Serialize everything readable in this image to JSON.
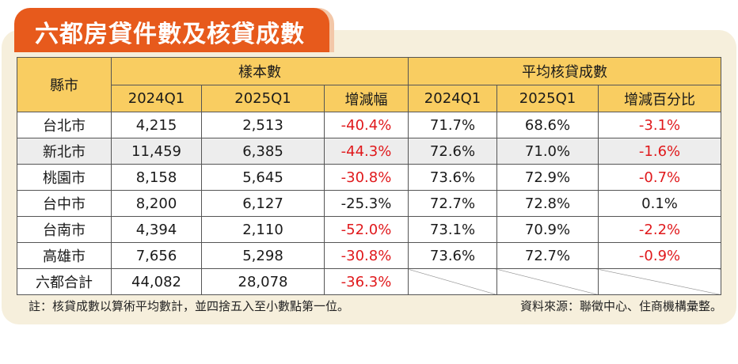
{
  "title": "六都房貸件數及核貸成數",
  "table": {
    "county_header": "縣市",
    "group_sample": "樣本數",
    "group_ratio": "平均核貸成數",
    "sub_headers": [
      "2024Q1",
      "2025Q1",
      "增減幅",
      "2024Q1",
      "2025Q1",
      "增減百分比"
    ],
    "rows": [
      {
        "city": "台北市",
        "s2024": "4,215",
        "s2025": "2,513",
        "s_change": "-40.4%",
        "r2024": "71.7%",
        "r2025": "68.6%",
        "r_change": "-3.1%"
      },
      {
        "city": "新北市",
        "s2024": "11,459",
        "s2025": "6,385",
        "s_change": "-44.3%",
        "r2024": "72.6%",
        "r2025": "71.0%",
        "r_change": "-1.6%"
      },
      {
        "city": "桃園市",
        "s2024": "8,158",
        "s2025": "5,645",
        "s_change": "-30.8%",
        "r2024": "73.6%",
        "r2025": "72.9%",
        "r_change": "-0.7%"
      },
      {
        "city": "台中市",
        "s2024": "8,200",
        "s2025": "6,127",
        "s_change": "-25.3%",
        "r2024": "72.7%",
        "r2025": "72.8%",
        "r_change": "0.1%"
      },
      {
        "city": "台南市",
        "s2024": "4,394",
        "s2025": "2,110",
        "s_change": "-52.0%",
        "r2024": "73.1%",
        "r2025": "70.9%",
        "r_change": "-2.2%"
      },
      {
        "city": "高雄市",
        "s2024": "7,656",
        "s2025": "5,298",
        "s_change": "-30.8%",
        "r2024": "73.6%",
        "r2025": "72.7%",
        "r_change": "-0.9%"
      }
    ],
    "total": {
      "city": "六都合計",
      "s2024": "44,082",
      "s2025": "28,078",
      "s_change": "-36.3%"
    }
  },
  "note": "註：核貸成數以算術平均數計，並四捨五入至小數點第一位。",
  "source": "資料來源：聯徵中心、住商機構彙整。",
  "colors": {
    "accent": "#e75a1c",
    "header": "#f9cd61",
    "negative": "#e0191c",
    "panel": "#f6efdc"
  }
}
